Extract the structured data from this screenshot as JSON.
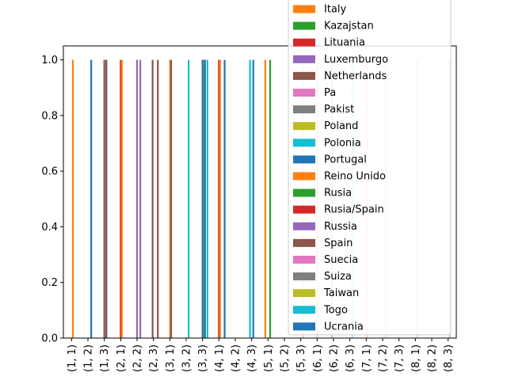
{
  "chart_data": {
    "type": "bar",
    "categories": [
      "(1, 1)",
      "(1, 2)",
      "(1, 3)",
      "(2, 1)",
      "(2, 2)",
      "(2, 3)",
      "(3, 1)",
      "(3, 2)",
      "(3, 3)",
      "(4, 1)",
      "(4, 2)",
      "(4, 3)",
      "(5, 1)",
      "(5, 2)",
      "(5, 3)",
      "(6, 1)",
      "(6, 2)",
      "(6, 3)",
      "(7, 1)",
      "(7, 2)",
      "(7, 3)",
      "(8, 1)",
      "(8, 2)",
      "(8, 3)"
    ],
    "ylim": [
      0,
      1.05
    ],
    "yticks": [
      "0.0",
      "0.2",
      "0.4",
      "0.6",
      "0.8",
      "1.0"
    ],
    "legend_position": "top-right",
    "legend_entries": [
      "Italy",
      "Kazajstan",
      "Lituania",
      "Luxemburgo",
      "Netherlands",
      "Pa",
      "Pakist",
      "Poland",
      "Polonia",
      "Portugal",
      "Reino Unido",
      "Rusia",
      "Rusia/Spain",
      "Russia",
      "Spain",
      "Suecia",
      "Suiza",
      "Taiwan",
      "Togo",
      "Ucrania"
    ],
    "palette": [
      "#ff7f0e",
      "#2ca02c",
      "#d62728",
      "#9467bd",
      "#8c564b",
      "#e377c2",
      "#7f7f7f",
      "#bcbd22",
      "#17becf",
      "#1f77b4"
    ],
    "bars": [
      {
        "category": 0,
        "slot": 0.08,
        "color": "#ff7f0e",
        "value": 1.0
      },
      {
        "category": 1,
        "slot": 0.2,
        "color": "#1f77b4",
        "value": 1.0
      },
      {
        "category": 2,
        "slot": 0.0,
        "color": "#8c564b",
        "value": 1.0
      },
      {
        "category": 2,
        "slot": 0.07,
        "color": "#7f7f7f",
        "value": 1.0
      },
      {
        "category": 2,
        "slot": 0.13,
        "color": "#8c564b",
        "value": 1.0
      },
      {
        "category": 3,
        "slot": 0.0,
        "color": "#d62728",
        "value": 1.0
      },
      {
        "category": 3,
        "slot": 0.07,
        "color": "#ff7f0e",
        "value": 1.0
      },
      {
        "category": 4,
        "slot": 0.0,
        "color": "#9467bd",
        "value": 1.0
      },
      {
        "category": 4,
        "slot": 0.2,
        "color": "#9467bd",
        "value": 1.0
      },
      {
        "category": 5,
        "slot": -0.05,
        "color": "#8c564b",
        "value": 1.0
      },
      {
        "category": 5,
        "slot": 0.27,
        "color": "#8c564b",
        "value": 1.0
      },
      {
        "category": 6,
        "slot": 0.02,
        "color": "#ff7f0e",
        "value": 1.0
      },
      {
        "category": 6,
        "slot": 0.08,
        "color": "#8c564b",
        "value": 1.0
      },
      {
        "category": 7,
        "slot": 0.15,
        "color": "#17becf",
        "value": 1.0
      },
      {
        "category": 8,
        "slot": 0.0,
        "color": "#1f77b4",
        "value": 1.0
      },
      {
        "category": 8,
        "slot": 0.08,
        "color": "#7f7f7f",
        "value": 1.0
      },
      {
        "category": 8,
        "slot": 0.15,
        "color": "#1f77b4",
        "value": 1.0
      },
      {
        "category": 8,
        "slot": 0.3,
        "color": "#17becf",
        "value": 1.0
      },
      {
        "category": 9,
        "slot": 0.0,
        "color": "#d62728",
        "value": 1.0
      },
      {
        "category": 9,
        "slot": 0.07,
        "color": "#ff7f0e",
        "value": 1.0
      },
      {
        "category": 9,
        "slot": 0.35,
        "color": "#1f77b4",
        "value": 1.0
      },
      {
        "category": 11,
        "slot": -0.1,
        "color": "#17becf",
        "value": 1.0
      },
      {
        "category": 11,
        "slot": 0.1,
        "color": "#1f77b4",
        "value": 1.0
      },
      {
        "category": 12,
        "slot": -0.17,
        "color": "#ff7f0e",
        "value": 1.0
      },
      {
        "category": 12,
        "slot": 0.13,
        "color": "#2ca02c",
        "value": 1.0
      }
    ]
  }
}
